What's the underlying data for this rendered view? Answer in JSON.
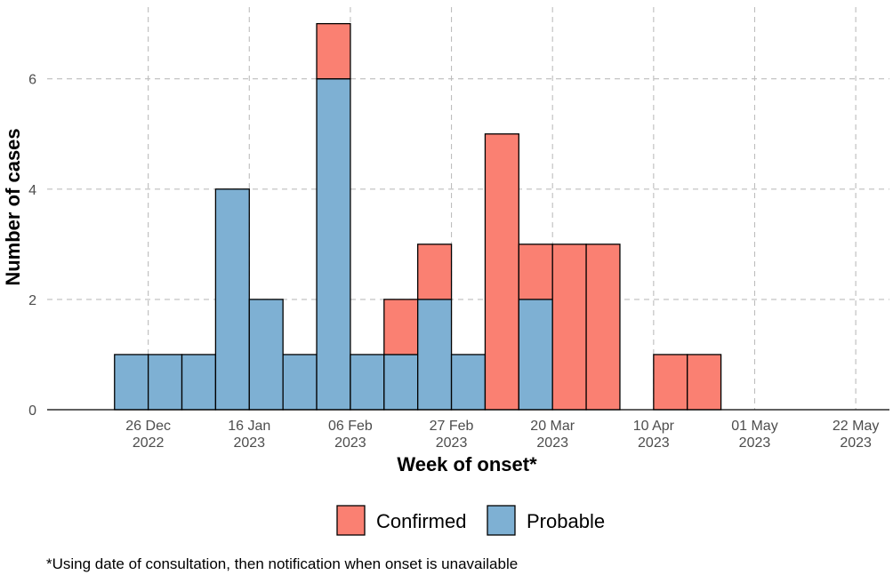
{
  "chart_data": {
    "type": "bar",
    "stacked": true,
    "x_axis_type": "date",
    "bin_width_days": 7,
    "bins": [
      {
        "week_start": "2022-12-19",
        "probable": 1,
        "confirmed": 0
      },
      {
        "week_start": "2022-12-26",
        "probable": 1,
        "confirmed": 0
      },
      {
        "week_start": "2023-01-02",
        "probable": 1,
        "confirmed": 0
      },
      {
        "week_start": "2023-01-09",
        "probable": 4,
        "confirmed": 0
      },
      {
        "week_start": "2023-01-16",
        "probable": 2,
        "confirmed": 0
      },
      {
        "week_start": "2023-01-23",
        "probable": 1,
        "confirmed": 0
      },
      {
        "week_start": "2023-01-30",
        "probable": 6,
        "confirmed": 1
      },
      {
        "week_start": "2023-02-06",
        "probable": 1,
        "confirmed": 0
      },
      {
        "week_start": "2023-02-13",
        "probable": 1,
        "confirmed": 1
      },
      {
        "week_start": "2023-02-20",
        "probable": 2,
        "confirmed": 1
      },
      {
        "week_start": "2023-02-27",
        "probable": 1,
        "confirmed": 0
      },
      {
        "week_start": "2023-03-06",
        "probable": 0,
        "confirmed": 5
      },
      {
        "week_start": "2023-03-13",
        "probable": 2,
        "confirmed": 1
      },
      {
        "week_start": "2023-03-20",
        "probable": 0,
        "confirmed": 3
      },
      {
        "week_start": "2023-03-27",
        "probable": 0,
        "confirmed": 3
      },
      {
        "week_start": "2023-04-03",
        "probable": 0,
        "confirmed": 0
      },
      {
        "week_start": "2023-04-10",
        "probable": 0,
        "confirmed": 1
      },
      {
        "week_start": "2023-04-17",
        "probable": 0,
        "confirmed": 1
      }
    ],
    "series": [
      {
        "name": "Confirmed",
        "key": "confirmed",
        "color": "#fa8072"
      },
      {
        "name": "Probable",
        "key": "probable",
        "color": "#7eb0d3"
      }
    ],
    "stack_order_bottom_to_top": [
      "probable",
      "confirmed"
    ],
    "x_ticks": [
      {
        "date": "2022-12-26",
        "label_line1": "26 Dec",
        "label_line2": "2022"
      },
      {
        "date": "2023-01-16",
        "label_line1": "16 Jan",
        "label_line2": "2023"
      },
      {
        "date": "2023-02-06",
        "label_line1": "06 Feb",
        "label_line2": "2023"
      },
      {
        "date": "2023-02-27",
        "label_line1": "27 Feb",
        "label_line2": "2023"
      },
      {
        "date": "2023-03-20",
        "label_line1": "20 Mar",
        "label_line2": "2023"
      },
      {
        "date": "2023-04-10",
        "label_line1": "10 Apr",
        "label_line2": "2023"
      },
      {
        "date": "2023-05-01",
        "label_line1": "01 May",
        "label_line2": "2023"
      },
      {
        "date": "2023-05-22",
        "label_line1": "22 May",
        "label_line2": "2023"
      }
    ],
    "y_ticks": [
      0,
      2,
      4,
      6
    ],
    "xlim": [
      "2022-12-05",
      "2023-05-29"
    ],
    "ylim": [
      0,
      7.3
    ],
    "xlabel": "Week of onset*",
    "ylabel": "Number of cases",
    "grid": true,
    "grid_style": "dashed",
    "legend_position": "bottom",
    "caption": "*Using date of consultation, then notification when onset is unavailable"
  }
}
